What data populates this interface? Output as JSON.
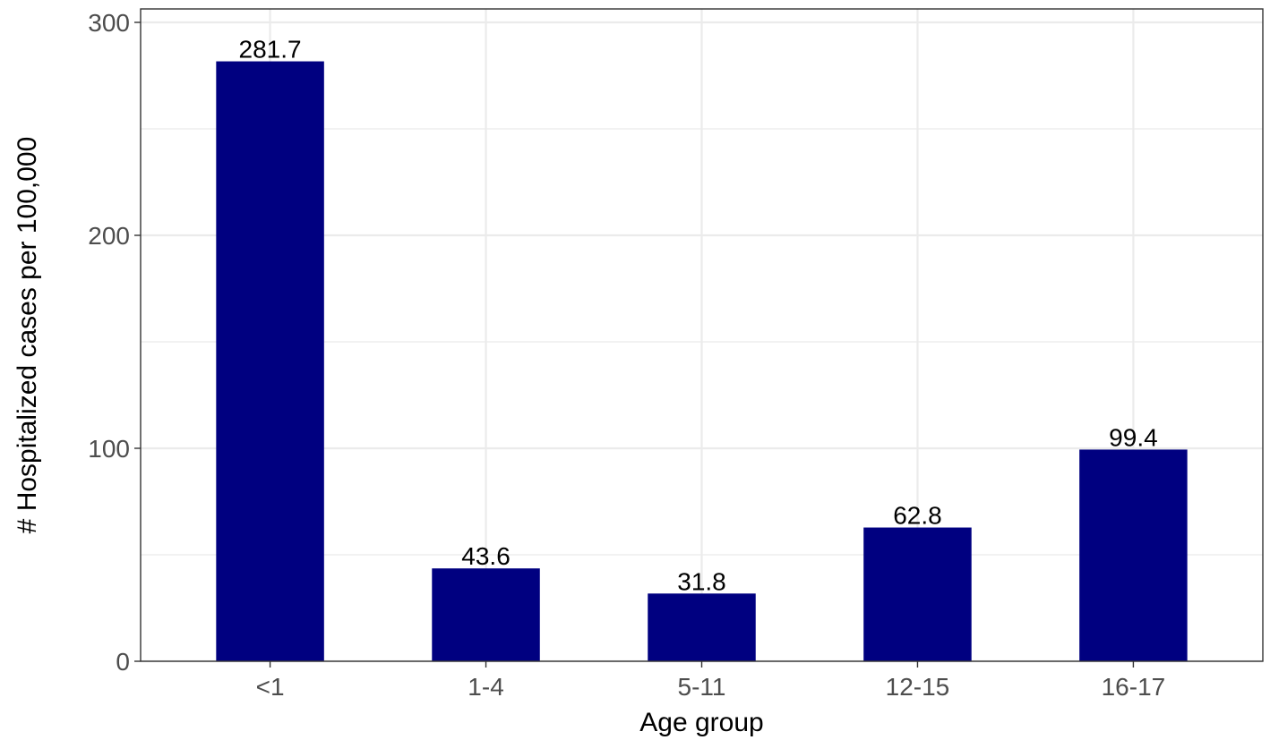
{
  "chart_data": {
    "type": "bar",
    "title": "",
    "xlabel": "Age group",
    "ylabel": "# Hospitalized cases per 100,000",
    "categories": [
      "<1",
      "1-4",
      "5-11",
      "12-15",
      "16-17"
    ],
    "values": [
      281.7,
      43.6,
      31.8,
      62.8,
      99.4
    ],
    "data_labels": [
      "281.7",
      "43.6",
      "31.8",
      "62.8",
      "99.4"
    ],
    "ylim": [
      0,
      300
    ],
    "yticks": [
      0,
      100,
      200,
      300
    ],
    "ytick_labels": [
      "0",
      "100",
      "200",
      "300"
    ],
    "grid": true,
    "legend": "none",
    "colors": {
      "bar": "#000080",
      "grid": "#ebebeb",
      "panel_border": "#333333"
    }
  }
}
